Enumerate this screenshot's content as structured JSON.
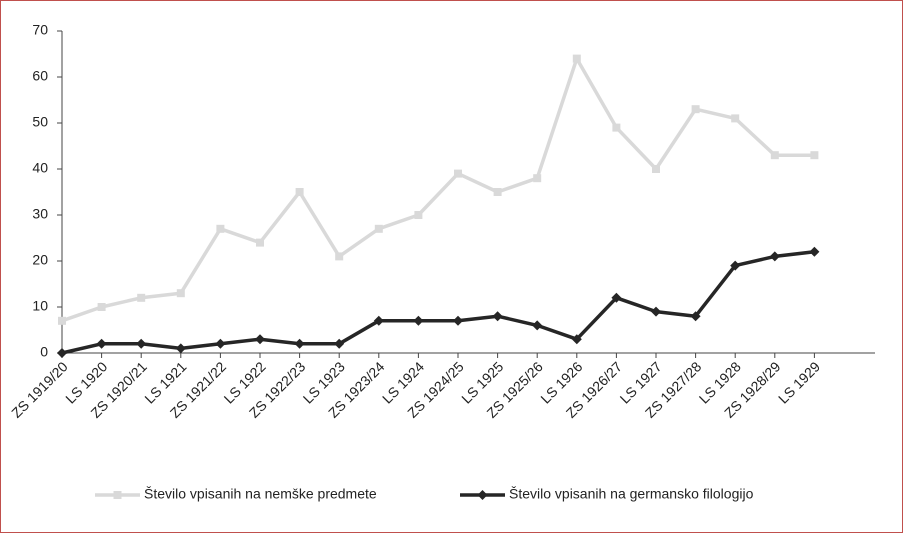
{
  "chart_data": {
    "type": "line",
    "categories": [
      "ZS 1919/20",
      "LS 1920",
      "ZS 1920/21",
      "LS 1921",
      "ZS 1921/22",
      "LS 1922",
      "ZS 1922/23",
      "LS 1923",
      "ZS 1923/24",
      "LS 1924",
      "ZS 1924/25",
      "LS 1925",
      "ZS 1925/26",
      "LS 1926",
      "ZS 1926/27",
      "LS 1927",
      "ZS 1927/28",
      "LS 1928",
      "ZS 1928/29",
      "LS 1929"
    ],
    "series": [
      {
        "name": "Število vpisanih na nemške predmete",
        "color": "#d9d9d9",
        "marker": "square",
        "values": [
          7,
          10,
          12,
          13,
          27,
          24,
          35,
          21,
          27,
          30,
          39,
          35,
          38,
          64,
          49,
          40,
          53,
          51,
          43,
          43
        ]
      },
      {
        "name": "Število vpisanih na germansko filologijo",
        "color": "#262626",
        "marker": "diamond",
        "values": [
          0,
          2,
          2,
          1,
          2,
          3,
          2,
          2,
          7,
          7,
          7,
          8,
          6,
          3,
          12,
          9,
          8,
          19,
          21,
          22
        ]
      }
    ],
    "ylim": [
      0,
      70
    ],
    "yticks": [
      0,
      10,
      20,
      30,
      40,
      50,
      60,
      70
    ],
    "grid": false,
    "legend": "bottom"
  }
}
